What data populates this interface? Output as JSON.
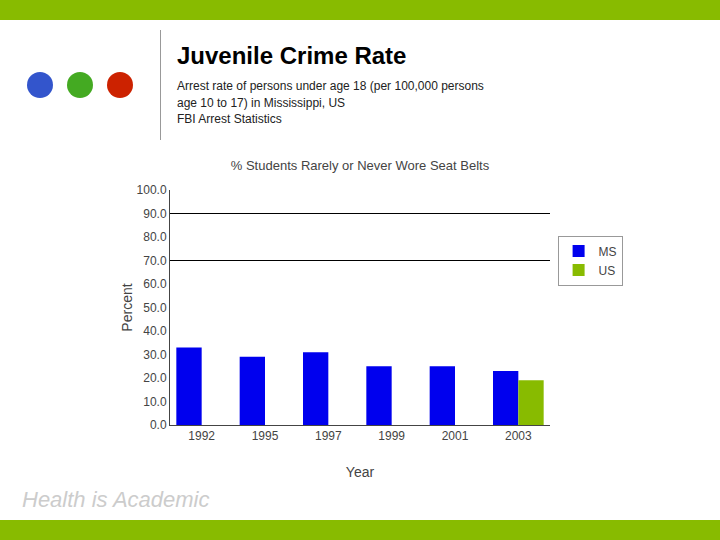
{
  "page": {
    "title": "Juvenile Crime Rate",
    "subtitle": "Arrest rate of persons under age 18 (per 100,000 persons\nage 10 to 17) in Mississippi, US\nFBI Arrest Statistics",
    "footer": "Health is Academic"
  },
  "chart_data": {
    "type": "bar",
    "title": "% Students Rarely or Never Wore Seat Belts",
    "x_label": "Year",
    "y_label": "Percent",
    "categories": [
      "1992",
      "1995",
      "1997",
      "1999",
      "2001",
      "2003"
    ],
    "series": [
      {
        "name": "MS",
        "color": "#0000EE",
        "values": [
          33.0,
          29.0,
          31.0,
          25.0,
          25.0,
          23.0
        ]
      },
      {
        "name": "US",
        "color": "#88BB00",
        "values": [
          null,
          null,
          null,
          null,
          null,
          19.0
        ]
      }
    ],
    "hlines": [
      90.0,
      70.0
    ],
    "ylim": [
      0,
      100
    ],
    "yticks": [
      {
        "value": 0,
        "label": "0.0"
      },
      {
        "value": 10,
        "label": "10.0"
      },
      {
        "value": 20,
        "label": "20.0"
      },
      {
        "value": 30,
        "label": "30.0"
      },
      {
        "value": 40,
        "label": "40.0"
      },
      {
        "value": 50,
        "label": "50.0"
      },
      {
        "value": 60,
        "label": "60.0"
      },
      {
        "value": 70,
        "label": "70.0"
      },
      {
        "value": 80,
        "label": "80.0"
      },
      {
        "value": 90,
        "label": "90.0"
      },
      {
        "value": 100,
        "label": "100.0"
      }
    ],
    "grid": false,
    "legend": "right"
  }
}
